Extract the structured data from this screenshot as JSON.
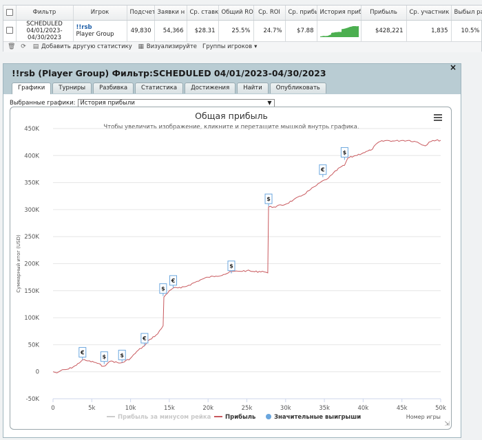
{
  "stats": {
    "headers": [
      "Фильтр",
      "Игрок",
      "Подсчет",
      "Заявки н",
      "Ср. ставк",
      "Общий ROI",
      "Ср. ROI",
      "Ср. прибы",
      "История прибы",
      "Прибыль",
      "Ср. участник",
      "Выбыл рано"
    ],
    "row": {
      "filter_line1": "SCHEDULED",
      "filter_line2": "04/01/2023-",
      "filter_line3": "04/30/2023",
      "player_name": "!!rsb",
      "player_group": "Player Group",
      "count": "49,830",
      "entries": "54,366",
      "avg_stake": "$28.31",
      "total_roi": "25.5%",
      "avg_roi": "24.7%",
      "avg_profit": "$7.88",
      "profit": "$428,221",
      "avg_entrants": "1,835",
      "early_exit": "10.5%"
    },
    "toolbar": {
      "add_stat": "Добавить другую статистику",
      "visualize": "Визуализируйте",
      "player_groups": "Группы игроков"
    }
  },
  "window": {
    "title": "!!rsb (Player Group) Фильтр:SCHEDULED 04/01/2023-04/30/2023",
    "close": "×",
    "tabs": [
      "Графики",
      "Турниры",
      "Разбивка",
      "Статистика",
      "Достижения",
      "Найти",
      "Опубликовать"
    ],
    "selected_charts_label": "Выбранные графики:",
    "selected_chart_value": "История прибыли"
  },
  "colors": {
    "profit_line": "#c8585d",
    "rake_line": "#cccccc",
    "big_win": "#6aa6de",
    "spark_fill": "#4caf50"
  },
  "icons": {
    "menu": "hamburger-menu-icon",
    "trash": "trash-icon",
    "refresh": "refresh-icon",
    "add": "add-stat-icon",
    "visualize": "chart-icon",
    "close": "close-icon"
  },
  "chart_data": {
    "type": "line",
    "title": "Общая прибыль",
    "subtitle": "Чтобы увеличить изображение, кликните и перетащите мышкой внутрь графика.",
    "xlabel": "Номер игры",
    "ylabel": "Суммарный итог (USD)",
    "xlim": [
      0,
      50000
    ],
    "ylim": [
      -50000,
      450000
    ],
    "x_ticks": [
      "0",
      "5k",
      "10k",
      "15k",
      "20k",
      "25k",
      "30k",
      "35k",
      "40k",
      "45k",
      "50k"
    ],
    "y_ticks": [
      "-50K",
      "0",
      "50K",
      "100K",
      "150K",
      "200K",
      "250K",
      "300K",
      "350K",
      "400K",
      "450K"
    ],
    "legend": [
      "Прибыль за минусом рейка",
      "Прибыль",
      "Значительные выигрыши"
    ],
    "series": [
      {
        "name": "Прибыль",
        "x": [
          0,
          500,
          1000,
          2000,
          3000,
          3800,
          4500,
          5500,
          6500,
          7000,
          7500,
          8500,
          9000,
          10000,
          11000,
          11800,
          12500,
          13500,
          14200,
          14300,
          15000,
          15500,
          16500,
          17500,
          19000,
          20000,
          21000,
          22000,
          23000,
          24000,
          25000,
          26000,
          27000,
          27700,
          27800,
          28500,
          30000,
          31000,
          32000,
          33000,
          34000,
          35000,
          35500,
          36000,
          37000,
          37600,
          38000,
          39000,
          40000,
          41000,
          42000,
          43000,
          44000,
          45000,
          46000,
          47000,
          48000,
          48500,
          49000,
          50000
        ],
        "y": [
          0,
          -2000,
          2000,
          5000,
          12000,
          22000,
          20000,
          17000,
          10000,
          15000,
          20000,
          16000,
          17000,
          25000,
          40000,
          48000,
          60000,
          70000,
          85000,
          138000,
          150000,
          155000,
          155000,
          160000,
          170000,
          175000,
          177000,
          180000,
          185000,
          186000,
          187000,
          185000,
          186000,
          183000,
          305000,
          305000,
          310000,
          318000,
          325000,
          335000,
          345000,
          355000,
          358000,
          365000,
          378000,
          382000,
          395000,
          400000,
          405000,
          410000,
          425000,
          428000,
          427000,
          428000,
          428000,
          425000,
          418000,
          425000,
          428000,
          428221
        ]
      }
    ],
    "big_wins": [
      {
        "x": 3800,
        "y": 22000,
        "symbol": "€"
      },
      {
        "x": 6600,
        "y": 14000,
        "symbol": "$"
      },
      {
        "x": 8900,
        "y": 17000,
        "symbol": "$"
      },
      {
        "x": 11800,
        "y": 48000,
        "symbol": "€"
      },
      {
        "x": 14200,
        "y": 140000,
        "symbol": "$"
      },
      {
        "x": 15500,
        "y": 155000,
        "symbol": "€"
      },
      {
        "x": 23000,
        "y": 182000,
        "symbol": "$"
      },
      {
        "x": 27800,
        "y": 306000,
        "symbol": "$"
      },
      {
        "x": 34800,
        "y": 360000,
        "symbol": "€"
      },
      {
        "x": 37600,
        "y": 392000,
        "symbol": "$"
      }
    ]
  }
}
